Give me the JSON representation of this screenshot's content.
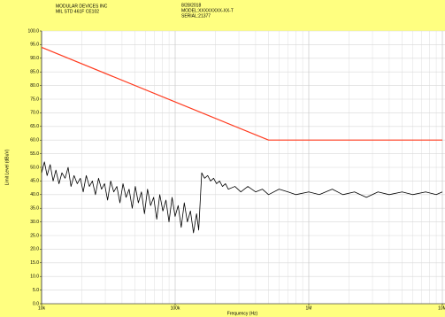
{
  "chart_data": {
    "type": "line",
    "annotations": [
      "MODULAR DEVICES INC",
      "MIL STD 461F CE102",
      "8/28/2018",
      "MODEL:XXXXXXXX-XX-T",
      "SERIAL:21377"
    ],
    "xlabel": "Frequency (Hz)",
    "ylabel": "Limit Level (dBuV)",
    "log_x": true,
    "grid": true,
    "xlim": [
      10000,
      10000000
    ],
    "xticks": [
      {
        "value": 10000,
        "label": "10k"
      },
      {
        "value": 100000,
        "label": "100k"
      },
      {
        "value": 1000000,
        "label": "1M"
      },
      {
        "value": 10000000,
        "label": "10M"
      }
    ],
    "ylim": [
      0,
      100
    ],
    "yticks": [
      {
        "value": 0,
        "label": "0.0"
      },
      {
        "value": 5,
        "label": "5.0"
      },
      {
        "value": 10,
        "label": "10.0"
      },
      {
        "value": 15,
        "label": "15.0"
      },
      {
        "value": 20,
        "label": "20.0"
      },
      {
        "value": 25,
        "label": "25.0"
      },
      {
        "value": 30,
        "label": "30.0"
      },
      {
        "value": 35,
        "label": "35.0"
      },
      {
        "value": 40,
        "label": "40.0"
      },
      {
        "value": 45,
        "label": "45.0"
      },
      {
        "value": 50,
        "label": "50.0"
      },
      {
        "value": 55,
        "label": "55.0"
      },
      {
        "value": 60,
        "label": "60.0"
      },
      {
        "value": 65,
        "label": "65.0"
      },
      {
        "value": 70,
        "label": "70.0"
      },
      {
        "value": 75,
        "label": "75.0"
      },
      {
        "value": 80,
        "label": "80.0"
      },
      {
        "value": 85,
        "label": "85.0"
      },
      {
        "value": 90,
        "label": "90.0"
      },
      {
        "value": 95,
        "label": "95.0"
      },
      {
        "value": 100,
        "label": "100.0"
      }
    ],
    "lines": [
      {
        "color": "#ff3b1f",
        "x": [
          10000,
          500000,
          10000000
        ],
        "values": [
          94,
          60,
          60
        ]
      },
      {
        "color": "#000000",
        "x": [
          10000,
          10500,
          11000,
          11600,
          12200,
          12800,
          13500,
          14200,
          15000,
          15800,
          16600,
          17500,
          18500,
          19500,
          20500,
          21600,
          22800,
          24000,
          25300,
          26700,
          28100,
          29600,
          31200,
          32900,
          34700,
          36600,
          38600,
          40700,
          42900,
          45200,
          47700,
          50300,
          53000,
          55900,
          58900,
          62100,
          65500,
          69000,
          72800,
          76700,
          80900,
          85300,
          89900,
          94800,
          99900,
          105300,
          111000,
          117000,
          123400,
          130100,
          137100,
          144600,
          150000,
          158000,
          166000,
          175000,
          184000,
          194000,
          204000,
          215000,
          226000,
          238000,
          250000,
          280000,
          310000,
          350000,
          400000,
          450000,
          500000,
          600000,
          700000,
          800000,
          1000000,
          1200000,
          1500000,
          1800000,
          2200000,
          2700000,
          3300000,
          4000000,
          5000000,
          6000000,
          7500000,
          9000000,
          10000000
        ],
        "values": [
          48,
          52,
          47,
          51,
          45,
          49,
          44,
          48,
          46,
          50,
          43,
          47,
          44,
          46,
          41,
          47,
          43,
          45,
          40,
          46,
          42,
          44,
          38,
          45,
          41,
          43,
          37,
          44,
          39,
          42,
          35,
          43,
          37,
          41,
          33,
          42,
          36,
          39,
          31,
          40,
          34,
          38,
          30,
          39,
          32,
          36,
          28,
          37,
          30,
          34,
          26,
          33,
          27,
          48,
          46,
          47,
          45,
          46,
          44,
          45,
          43,
          44,
          42,
          43,
          41,
          43,
          41,
          42,
          40,
          42,
          41,
          40,
          41,
          40,
          42,
          40,
          41,
          39,
          41,
          40,
          41,
          40,
          41,
          40,
          41
        ]
      }
    ]
  }
}
